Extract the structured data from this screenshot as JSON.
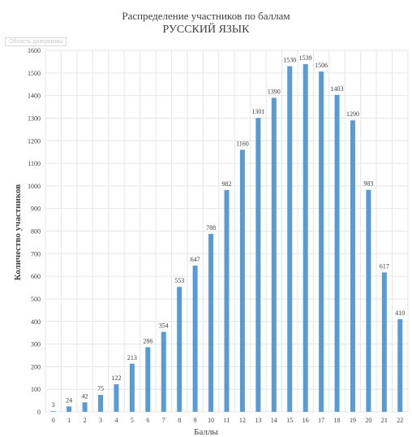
{
  "chart_data": {
    "type": "bar",
    "title": "Распределение участников по баллам",
    "subtitle": "РУССКИЙ ЯЗЫК",
    "xlabel": "Баллы",
    "ylabel": "Количество участников",
    "plot_area_label": "Область диаграммы",
    "categories": [
      "0",
      "1",
      "2",
      "3",
      "4",
      "5",
      "6",
      "7",
      "8",
      "9",
      "10",
      "11",
      "12",
      "13",
      "14",
      "15",
      "16",
      "17",
      "18",
      "19",
      "20",
      "21",
      "22"
    ],
    "values": [
      3,
      24,
      42,
      75,
      122,
      213,
      286,
      354,
      553,
      647,
      788,
      982,
      1160,
      1301,
      1390,
      1530,
      1539,
      1506,
      1403,
      1290,
      983,
      617,
      410
    ],
    "ylim": [
      0,
      1600
    ],
    "yticks": [
      0,
      100,
      200,
      300,
      400,
      500,
      600,
      700,
      800,
      900,
      1000,
      1100,
      1200,
      1300,
      1400,
      1500,
      1600
    ],
    "grid": true,
    "bar_color": "#5b9bd5",
    "grid_color": "#e6e6e6",
    "text_color": "#404040"
  }
}
